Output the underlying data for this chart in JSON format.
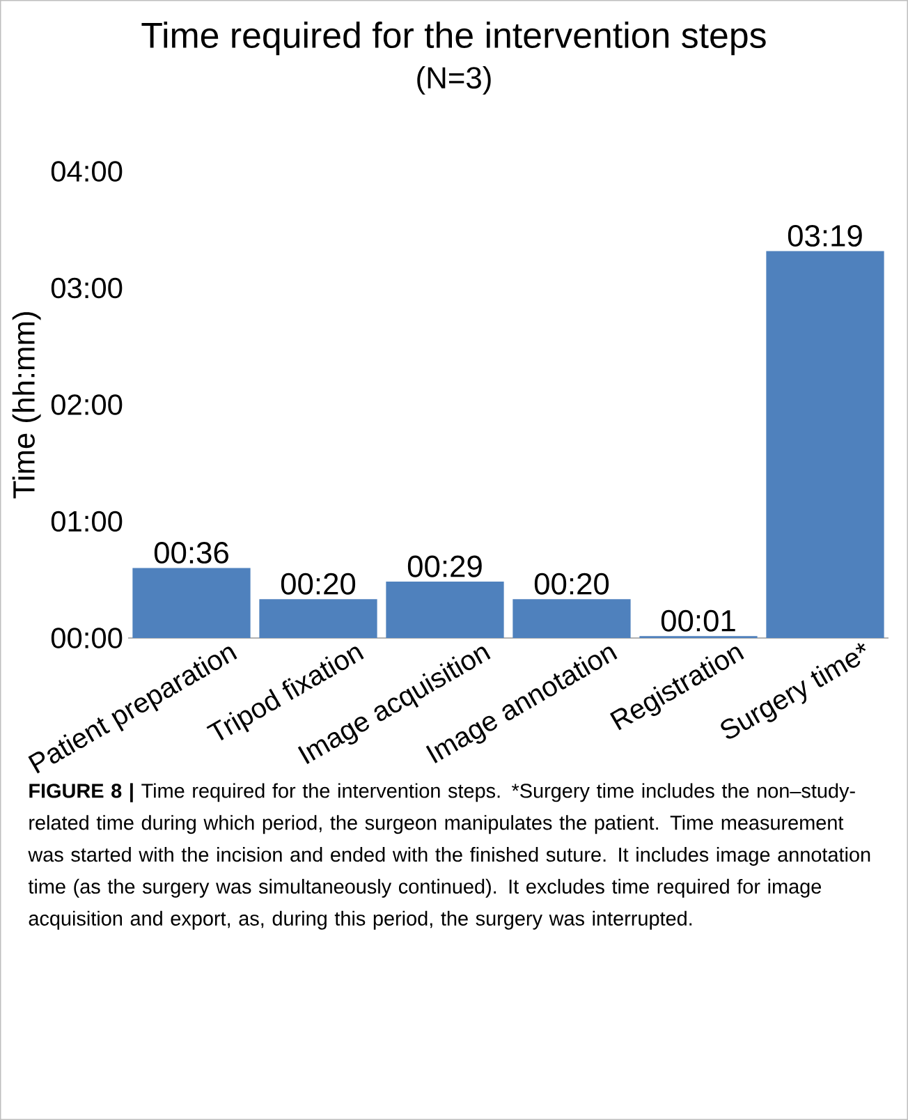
{
  "chart_data": {
    "type": "bar",
    "title": "Time required for the intervention steps",
    "subtitle": "(N=3)",
    "ylabel": "Time (hh:mm)",
    "categories": [
      "Patient preparation",
      "Tripod fixation",
      "Image acquisition",
      "Image annotation",
      "Registration",
      "Surgery time*"
    ],
    "values": [
      0.6,
      0.3333,
      0.4833,
      0.3333,
      0.0167,
      3.3167
    ],
    "value_labels": [
      "00:36",
      "00:20",
      "00:29",
      "00:20",
      "00:01",
      "03:19"
    ],
    "color": "#4f81bd",
    "ylim": [
      0,
      4
    ],
    "yticks": [
      {
        "value": 0,
        "label": "00:00"
      },
      {
        "value": 1,
        "label": "01:00"
      },
      {
        "value": 2,
        "label": "02:00"
      },
      {
        "value": 3,
        "label": "03:00"
      },
      {
        "value": 4,
        "label": "04:00"
      }
    ],
    "grid": false,
    "annotations": [
      "**FIGURE 8 |** Time required for the intervention steps. *Surgery time includes the non–study-related time during which period, the surgeon manipulates the patient. Time measurement was started with the incision and ended with the finished suture. It includes image annotation time (as the surgery was simultaneously continued). It excludes time required for image acquisition and export, as, during this period, the surgery was interrupted."
    ]
  }
}
